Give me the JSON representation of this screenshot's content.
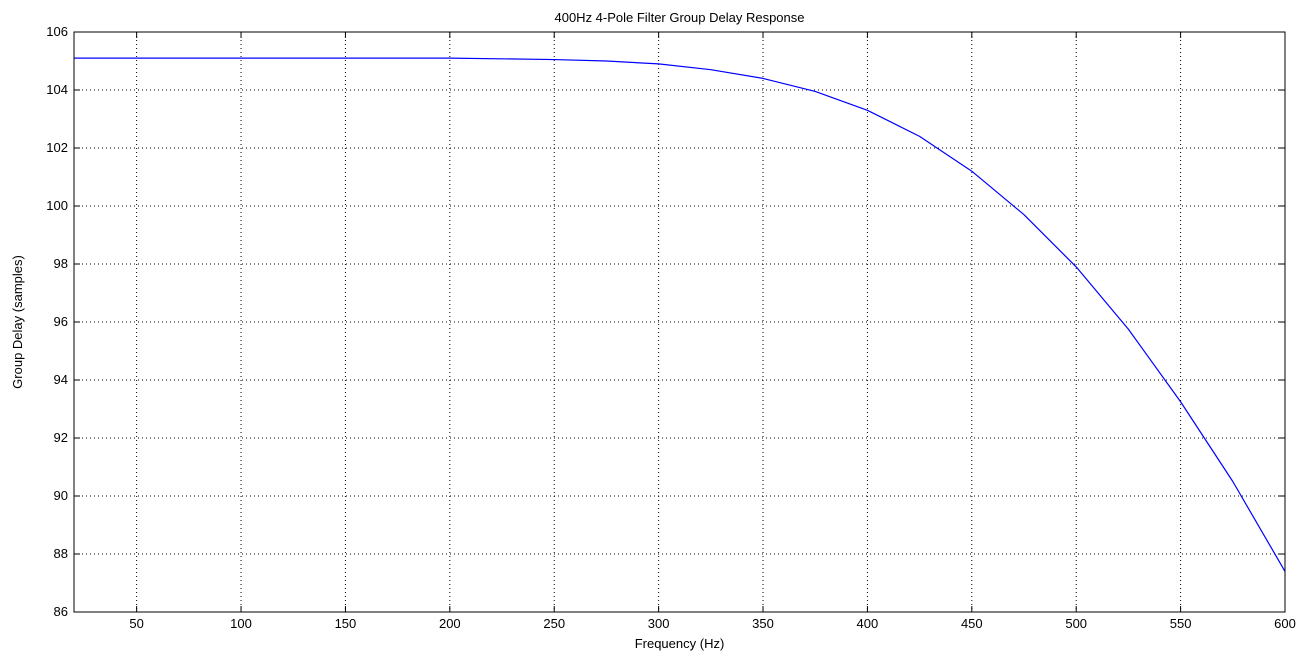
{
  "chart_data": {
    "type": "line",
    "title": "400Hz 4-Pole Filter Group Delay Response",
    "xlabel": "Frequency (Hz)",
    "ylabel": "Group Delay (samples)",
    "xlim": [
      20,
      600
    ],
    "ylim": [
      86,
      106
    ],
    "xticks": [
      50,
      100,
      150,
      200,
      250,
      300,
      350,
      400,
      450,
      500,
      550,
      600
    ],
    "yticks": [
      86,
      88,
      90,
      92,
      94,
      96,
      98,
      100,
      102,
      104,
      106
    ],
    "grid": true,
    "grid_style": "dotted",
    "series": [
      {
        "color": "#0000ff",
        "x": [
          20,
          50,
          100,
          150,
          200,
          250,
          275,
          300,
          325,
          350,
          375,
          400,
          425,
          450,
          475,
          500,
          525,
          550,
          575,
          600
        ],
        "y": [
          105.1,
          105.1,
          105.1,
          105.1,
          105.1,
          105.05,
          105.0,
          104.9,
          104.7,
          104.4,
          103.95,
          103.3,
          102.4,
          101.2,
          99.7,
          97.9,
          95.75,
          93.25,
          90.5,
          87.4
        ]
      }
    ]
  }
}
